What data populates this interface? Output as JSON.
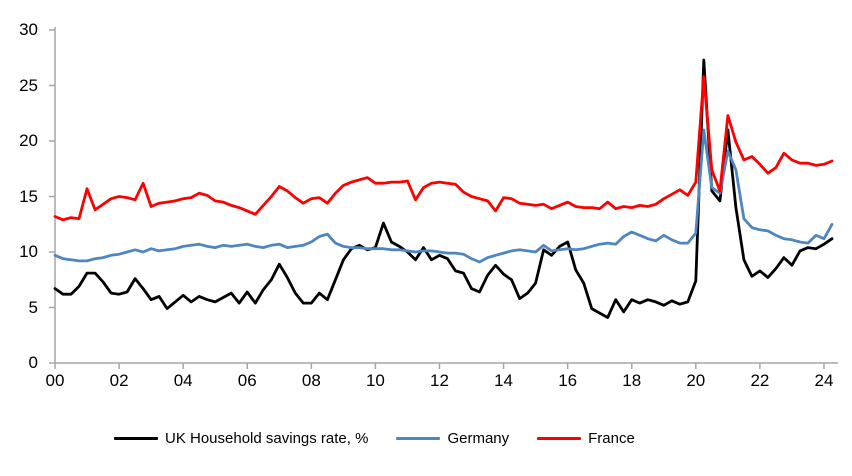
{
  "chart_data": {
    "type": "line",
    "title": "",
    "grid": false,
    "legend_position": "bottom",
    "x_axis": {
      "start": "2000-Q1",
      "end": "2024-Q2",
      "frequency": "quarterly",
      "tick_labels": [
        "00",
        "02",
        "04",
        "06",
        "08",
        "10",
        "12",
        "14",
        "16",
        "18",
        "20",
        "22",
        "24"
      ]
    },
    "y_axis": {
      "range": [
        0,
        30
      ],
      "ticks": [
        0,
        5,
        10,
        15,
        20,
        25,
        30
      ],
      "tick_labels": [
        "0",
        "5",
        "10",
        "15",
        "20",
        "25",
        "30"
      ]
    },
    "series": [
      {
        "id": "uk",
        "name": "UK Household savings rate, %",
        "color": "#000000",
        "values": [
          6.7,
          6.2,
          6.2,
          6.9,
          8.1,
          8.1,
          7.3,
          6.3,
          6.2,
          6.4,
          7.6,
          6.7,
          5.7,
          6.0,
          4.9,
          5.5,
          6.1,
          5.5,
          6.0,
          5.7,
          5.5,
          5.9,
          6.3,
          5.4,
          6.4,
          5.4,
          6.6,
          7.5,
          8.9,
          7.7,
          6.3,
          5.4,
          5.4,
          6.3,
          5.7,
          7.5,
          9.3,
          10.3,
          10.6,
          10.2,
          10.4,
          12.6,
          10.9,
          10.5,
          10.0,
          9.3,
          10.4,
          9.3,
          9.7,
          9.4,
          8.3,
          8.1,
          6.7,
          6.4,
          7.9,
          8.8,
          8.0,
          7.5,
          5.8,
          6.3,
          7.2,
          10.2,
          9.7,
          10.5,
          10.9,
          8.4,
          7.2,
          4.9,
          4.5,
          4.1,
          5.7,
          4.6,
          5.7,
          5.4,
          5.7,
          5.5,
          5.2,
          5.6,
          5.3,
          5.5,
          7.4,
          27.3,
          15.5,
          14.6,
          21.0,
          14.0,
          9.3,
          7.8,
          8.3,
          7.7,
          8.5,
          9.5,
          8.8,
          10.1,
          10.4,
          10.3,
          10.7,
          11.2
        ]
      },
      {
        "id": "germany",
        "name": "Germany",
        "color": "#4f86c0",
        "values": [
          9.7,
          9.4,
          9.3,
          9.2,
          9.2,
          9.4,
          9.5,
          9.7,
          9.8,
          10.0,
          10.2,
          10.0,
          10.3,
          10.1,
          10.2,
          10.3,
          10.5,
          10.6,
          10.7,
          10.5,
          10.4,
          10.6,
          10.5,
          10.6,
          10.7,
          10.5,
          10.4,
          10.6,
          10.7,
          10.4,
          10.5,
          10.6,
          10.9,
          11.4,
          11.6,
          10.8,
          10.5,
          10.4,
          10.4,
          10.3,
          10.3,
          10.3,
          10.2,
          10.2,
          10.1,
          10.0,
          10.1,
          10.1,
          10.0,
          9.9,
          9.9,
          9.8,
          9.4,
          9.1,
          9.5,
          9.7,
          9.9,
          10.1,
          10.2,
          10.1,
          10.0,
          10.6,
          10.1,
          10.2,
          10.3,
          10.2,
          10.3,
          10.5,
          10.7,
          10.8,
          10.7,
          11.4,
          11.8,
          11.5,
          11.2,
          11.0,
          11.5,
          11.1,
          10.8,
          10.8,
          11.7,
          21.0,
          15.8,
          15.3,
          19.1,
          17.4,
          13.0,
          12.2,
          12.0,
          11.9,
          11.5,
          11.2,
          11.1,
          10.9,
          10.8,
          11.5,
          11.2,
          12.5
        ]
      },
      {
        "id": "france",
        "name": "France",
        "color": "#fe0000",
        "values": [
          13.2,
          12.9,
          13.1,
          13.0,
          15.7,
          13.8,
          14.3,
          14.8,
          15.0,
          14.9,
          14.7,
          16.2,
          14.1,
          14.4,
          14.5,
          14.6,
          14.8,
          14.9,
          15.3,
          15.1,
          14.6,
          14.5,
          14.2,
          14.0,
          13.7,
          13.4,
          14.2,
          15.0,
          15.9,
          15.5,
          14.9,
          14.4,
          14.8,
          14.9,
          14.4,
          15.3,
          16.0,
          16.3,
          16.5,
          16.7,
          16.2,
          16.2,
          16.3,
          16.3,
          16.4,
          14.7,
          15.8,
          16.2,
          16.3,
          16.2,
          16.1,
          15.4,
          15.0,
          14.8,
          14.6,
          13.7,
          14.9,
          14.8,
          14.4,
          14.3,
          14.2,
          14.3,
          13.9,
          14.2,
          14.5,
          14.1,
          14.0,
          14.0,
          13.9,
          14.5,
          13.9,
          14.1,
          14.0,
          14.2,
          14.1,
          14.3,
          14.8,
          15.2,
          15.6,
          15.1,
          16.3,
          25.8,
          17.4,
          15.5,
          22.3,
          19.9,
          18.3,
          18.6,
          17.9,
          17.1,
          17.6,
          18.9,
          18.3,
          18.0,
          18.0,
          17.8,
          17.9,
          18.2
        ]
      }
    ]
  },
  "colors": {
    "axis": "#a6a6a6",
    "text": "#000000",
    "background": "#ffffff"
  }
}
